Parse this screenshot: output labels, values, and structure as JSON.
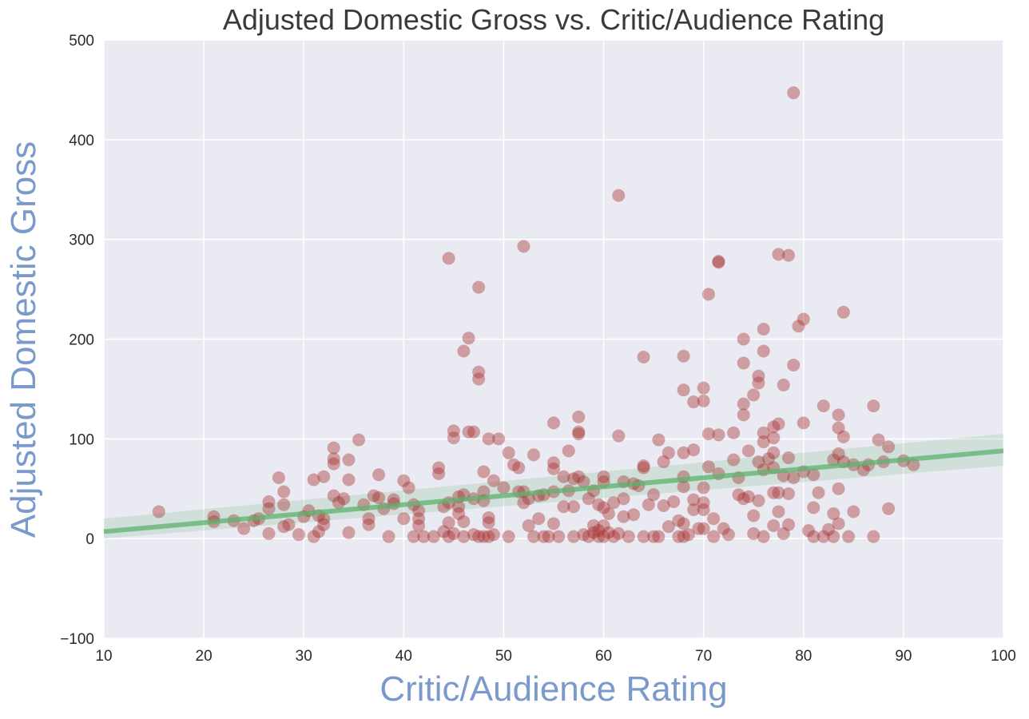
{
  "chart_data": {
    "type": "scatter",
    "title": "Adjusted Domestic Gross vs. Critic/Audience Rating",
    "xlabel": "Critic/Audience Rating",
    "ylabel": "Adjusted Domestic Gross",
    "xlim": [
      10,
      100
    ],
    "ylim": [
      -100,
      500
    ],
    "xticks": [
      "10",
      "20",
      "30",
      "40",
      "50",
      "60",
      "70",
      "80",
      "90",
      "100"
    ],
    "yticks": [
      "−100",
      "0",
      "100",
      "200",
      "300",
      "400",
      "500"
    ],
    "grid": true,
    "background": "#eaeaf2",
    "point_color": "#a52a2a",
    "line_color": "#5fb26e",
    "regression": {
      "x": [
        10,
        100
      ],
      "y": [
        7,
        88
      ],
      "ci_low": [
        0,
        73
      ],
      "ci_high": [
        20,
        105
      ]
    },
    "points": [
      [
        15.5,
        27
      ],
      [
        21,
        22
      ],
      [
        21,
        17
      ],
      [
        23,
        18
      ],
      [
        24,
        10
      ],
      [
        25,
        18
      ],
      [
        25.5,
        20
      ],
      [
        26.5,
        37
      ],
      [
        26.5,
        30
      ],
      [
        26.5,
        5
      ],
      [
        27.5,
        61
      ],
      [
        28,
        47
      ],
      [
        28,
        34
      ],
      [
        28,
        12
      ],
      [
        28.5,
        14
      ],
      [
        29.5,
        4
      ],
      [
        30,
        22
      ],
      [
        30.5,
        28
      ],
      [
        31,
        59
      ],
      [
        31,
        2
      ],
      [
        31.5,
        23
      ],
      [
        31.5,
        7
      ],
      [
        32,
        20
      ],
      [
        32,
        14
      ],
      [
        32,
        62
      ],
      [
        33,
        91
      ],
      [
        33,
        80
      ],
      [
        33,
        75
      ],
      [
        33,
        43
      ],
      [
        33.5,
        36
      ],
      [
        34,
        40
      ],
      [
        34.5,
        79
      ],
      [
        34.5,
        59
      ],
      [
        34.5,
        6
      ],
      [
        35.5,
        99
      ],
      [
        36,
        34
      ],
      [
        36.5,
        14
      ],
      [
        36.5,
        20
      ],
      [
        37,
        43
      ],
      [
        37.5,
        41
      ],
      [
        37.5,
        64
      ],
      [
        38,
        30
      ],
      [
        38.5,
        2
      ],
      [
        39,
        39
      ],
      [
        39,
        35
      ],
      [
        40,
        58
      ],
      [
        40,
        20
      ],
      [
        40.5,
        51
      ],
      [
        41,
        2
      ],
      [
        41,
        34
      ],
      [
        41.5,
        20
      ],
      [
        41.5,
        28
      ],
      [
        41.5,
        13
      ],
      [
        42,
        2
      ],
      [
        43,
        2
      ],
      [
        43.5,
        71
      ],
      [
        43.5,
        65
      ],
      [
        44,
        32
      ],
      [
        44,
        7
      ],
      [
        44.5,
        281
      ],
      [
        44.5,
        36
      ],
      [
        44.5,
        16
      ],
      [
        44.5,
        2
      ],
      [
        45,
        108
      ],
      [
        45,
        101
      ],
      [
        45,
        5
      ],
      [
        45.5,
        42
      ],
      [
        45.5,
        32
      ],
      [
        45.5,
        25
      ],
      [
        46,
        188
      ],
      [
        46,
        44
      ],
      [
        46,
        17
      ],
      [
        46,
        2
      ],
      [
        46.5,
        201
      ],
      [
        46.5,
        107
      ],
      [
        47,
        107
      ],
      [
        47,
        40
      ],
      [
        47,
        4
      ],
      [
        47.5,
        252
      ],
      [
        47.5,
        167
      ],
      [
        47.5,
        160
      ],
      [
        47.5,
        2
      ],
      [
        48,
        67
      ],
      [
        48,
        47
      ],
      [
        48,
        38
      ],
      [
        48,
        2
      ],
      [
        48.5,
        100
      ],
      [
        48.5,
        21
      ],
      [
        48.5,
        16
      ],
      [
        48.5,
        2
      ],
      [
        49,
        58
      ],
      [
        49,
        4
      ],
      [
        49.5,
        100
      ],
      [
        50,
        51
      ],
      [
        50.5,
        86
      ],
      [
        50.5,
        2
      ],
      [
        51,
        74
      ],
      [
        51.5,
        71
      ],
      [
        51.5,
        47
      ],
      [
        52,
        293
      ],
      [
        52,
        47
      ],
      [
        52,
        36
      ],
      [
        52.5,
        40
      ],
      [
        52.5,
        13
      ],
      [
        53,
        84
      ],
      [
        53,
        2
      ],
      [
        53.5,
        43
      ],
      [
        53.5,
        20
      ],
      [
        54,
        44
      ],
      [
        54,
        2
      ],
      [
        54.5,
        2
      ],
      [
        55,
        76
      ],
      [
        55,
        70
      ],
      [
        55,
        116
      ],
      [
        55,
        47
      ],
      [
        55,
        15
      ],
      [
        55.5,
        2
      ],
      [
        56,
        62
      ],
      [
        56,
        32
      ],
      [
        56.5,
        88
      ],
      [
        56.5,
        48
      ],
      [
        57,
        60
      ],
      [
        57,
        32
      ],
      [
        57,
        2
      ],
      [
        57.5,
        122
      ],
      [
        57.5,
        107
      ],
      [
        57.5,
        105
      ],
      [
        57.5,
        62
      ],
      [
        58,
        57
      ],
      [
        58,
        4
      ],
      [
        58.5,
        2
      ],
      [
        58.5,
        40
      ],
      [
        59,
        13
      ],
      [
        59,
        48
      ],
      [
        59,
        6
      ],
      [
        59.5,
        8
      ],
      [
        59.5,
        2
      ],
      [
        59.5,
        34
      ],
      [
        60,
        62
      ],
      [
        60,
        57
      ],
      [
        60,
        31
      ],
      [
        60,
        13
      ],
      [
        60,
        2
      ],
      [
        60.5,
        6
      ],
      [
        60.5,
        25
      ],
      [
        61,
        2
      ],
      [
        61,
        36
      ],
      [
        61.5,
        344
      ],
      [
        61.5,
        103
      ],
      [
        61.5,
        5
      ],
      [
        62,
        57
      ],
      [
        62,
        40
      ],
      [
        62,
        22
      ],
      [
        62.5,
        2
      ],
      [
        63,
        55
      ],
      [
        63,
        24
      ],
      [
        63.5,
        53
      ],
      [
        64,
        182
      ],
      [
        64,
        73
      ],
      [
        64,
        71
      ],
      [
        64,
        2
      ],
      [
        64.5,
        34
      ],
      [
        65,
        44
      ],
      [
        65,
        2
      ],
      [
        65.5,
        99
      ],
      [
        65.5,
        2
      ],
      [
        66,
        77
      ],
      [
        66,
        33
      ],
      [
        66.5,
        86
      ],
      [
        66.5,
        12
      ],
      [
        67,
        37
      ],
      [
        67.5,
        18
      ],
      [
        67.5,
        2
      ],
      [
        68,
        183
      ],
      [
        68,
        149
      ],
      [
        68,
        86
      ],
      [
        68,
        62
      ],
      [
        68,
        52
      ],
      [
        68,
        15
      ],
      [
        68,
        2
      ],
      [
        68.5,
        4
      ],
      [
        69,
        137
      ],
      [
        69,
        89
      ],
      [
        69,
        39
      ],
      [
        69,
        29
      ],
      [
        69.5,
        10
      ],
      [
        70,
        151
      ],
      [
        70,
        138
      ],
      [
        70,
        51
      ],
      [
        70,
        36
      ],
      [
        70,
        29
      ],
      [
        70,
        10
      ],
      [
        70.5,
        245
      ],
      [
        70.5,
        105
      ],
      [
        70.5,
        72
      ],
      [
        71,
        20
      ],
      [
        71,
        2
      ],
      [
        71.5,
        277
      ],
      [
        71.5,
        278
      ],
      [
        71.5,
        104
      ],
      [
        71.5,
        65
      ],
      [
        72,
        10
      ],
      [
        72.5,
        4
      ],
      [
        73,
        106
      ],
      [
        73,
        79
      ],
      [
        73.5,
        61
      ],
      [
        73.5,
        44
      ],
      [
        74,
        200
      ],
      [
        74,
        176
      ],
      [
        74,
        135
      ],
      [
        74,
        124
      ],
      [
        74,
        40
      ],
      [
        74.5,
        88
      ],
      [
        74.5,
        42
      ],
      [
        75,
        144
      ],
      [
        75,
        23
      ],
      [
        75,
        5
      ],
      [
        75.5,
        163
      ],
      [
        75.5,
        156
      ],
      [
        75.5,
        77
      ],
      [
        75.5,
        38
      ],
      [
        76,
        210
      ],
      [
        76,
        188
      ],
      [
        76,
        106
      ],
      [
        76,
        97
      ],
      [
        76,
        69
      ],
      [
        76,
        2
      ],
      [
        76.5,
        80
      ],
      [
        77,
        112
      ],
      [
        77,
        101
      ],
      [
        77,
        86
      ],
      [
        77,
        71
      ],
      [
        77,
        46
      ],
      [
        77,
        13
      ],
      [
        77.5,
        285
      ],
      [
        77.5,
        115
      ],
      [
        77.5,
        46
      ],
      [
        77.5,
        27
      ],
      [
        78,
        154
      ],
      [
        78,
        63
      ],
      [
        78,
        5
      ],
      [
        78.5,
        284
      ],
      [
        78.5,
        81
      ],
      [
        78.5,
        45
      ],
      [
        78.5,
        14
      ],
      [
        79,
        447
      ],
      [
        79,
        174
      ],
      [
        79,
        61
      ],
      [
        79.5,
        213
      ],
      [
        80,
        220
      ],
      [
        80,
        116
      ],
      [
        80,
        67
      ],
      [
        80.5,
        8
      ],
      [
        81,
        2
      ],
      [
        81,
        31
      ],
      [
        81,
        64
      ],
      [
        81.5,
        46
      ],
      [
        82,
        133
      ],
      [
        82,
        2
      ],
      [
        82.5,
        9
      ],
      [
        83,
        79
      ],
      [
        83,
        25
      ],
      [
        83,
        2
      ],
      [
        83.5,
        124
      ],
      [
        83.5,
        111
      ],
      [
        83.5,
        85
      ],
      [
        83.5,
        50
      ],
      [
        83.5,
        15
      ],
      [
        84,
        227
      ],
      [
        84,
        102
      ],
      [
        84,
        77
      ],
      [
        84.5,
        2
      ],
      [
        85,
        74
      ],
      [
        85,
        27
      ],
      [
        86,
        69
      ],
      [
        86.5,
        74
      ],
      [
        87,
        133
      ],
      [
        87,
        2
      ],
      [
        87.5,
        99
      ],
      [
        88,
        77
      ],
      [
        88.5,
        92
      ],
      [
        88.5,
        30
      ],
      [
        90,
        78
      ],
      [
        91,
        74
      ]
    ]
  }
}
